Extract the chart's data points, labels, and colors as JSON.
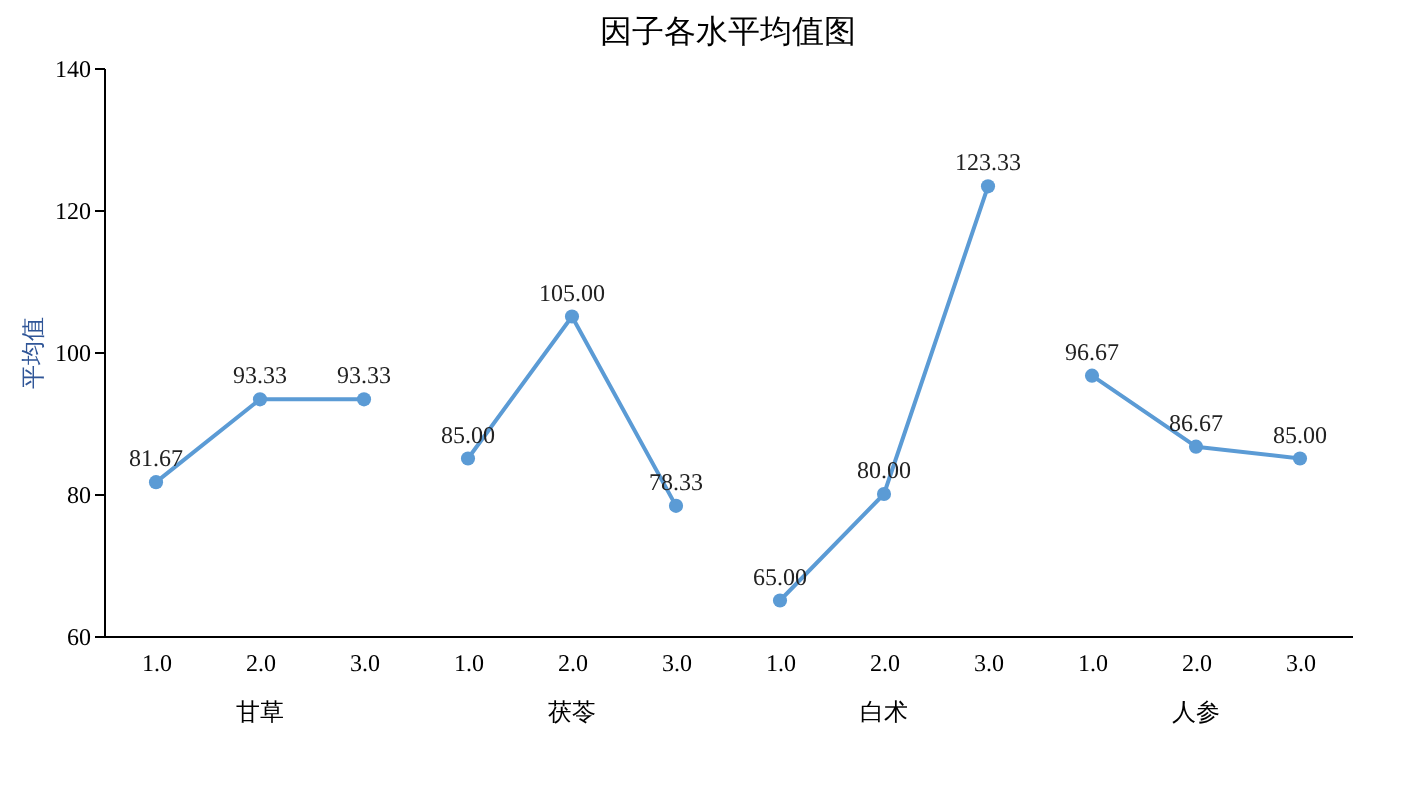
{
  "chart_data": {
    "type": "line",
    "title": "因子各水平均值图",
    "ylabel": "平均值",
    "categories": [
      "1.0",
      "2.0",
      "3.0",
      "1.0",
      "2.0",
      "3.0",
      "1.0",
      "2.0",
      "3.0",
      "1.0",
      "2.0",
      "3.0"
    ],
    "annotations": [
      "甘草",
      "茯苓",
      "白术",
      "人参"
    ],
    "series": [
      {
        "color": "#5b9bd5",
        "values": [
          81.67,
          93.33,
          93.33,
          null,
          null,
          null,
          null,
          null,
          null,
          null,
          null,
          null
        ],
        "value_labels": [
          "81.67",
          "93.33",
          "93.33",
          null,
          null,
          null,
          null,
          null,
          null,
          null,
          null,
          null
        ]
      },
      {
        "color": "#5b9bd5",
        "values": [
          null,
          null,
          null,
          85,
          105,
          78.33,
          null,
          null,
          null,
          null,
          null,
          null
        ],
        "value_labels": [
          null,
          null,
          null,
          "85.00",
          "105.00",
          "78.33",
          null,
          null,
          null,
          null,
          null,
          null
        ]
      },
      {
        "color": "#5b9bd5",
        "values": [
          null,
          null,
          null,
          null,
          null,
          null,
          65,
          80,
          123.33,
          null,
          null,
          null
        ],
        "value_labels": [
          null,
          null,
          null,
          null,
          null,
          null,
          "65.00",
          "80.00",
          "123.33",
          null,
          null,
          null
        ]
      },
      {
        "color": "#5b9bd5",
        "values": [
          null,
          null,
          null,
          null,
          null,
          null,
          null,
          null,
          null,
          96.67,
          86.67,
          85
        ],
        "value_labels": [
          null,
          null,
          null,
          null,
          null,
          null,
          null,
          null,
          null,
          "96.67",
          "86.67",
          "85.00"
        ]
      }
    ],
    "ylim": [
      60,
      140
    ],
    "yticks": [
      60,
      80,
      100,
      120,
      140
    ],
    "marker": "circle",
    "grid": false
  }
}
